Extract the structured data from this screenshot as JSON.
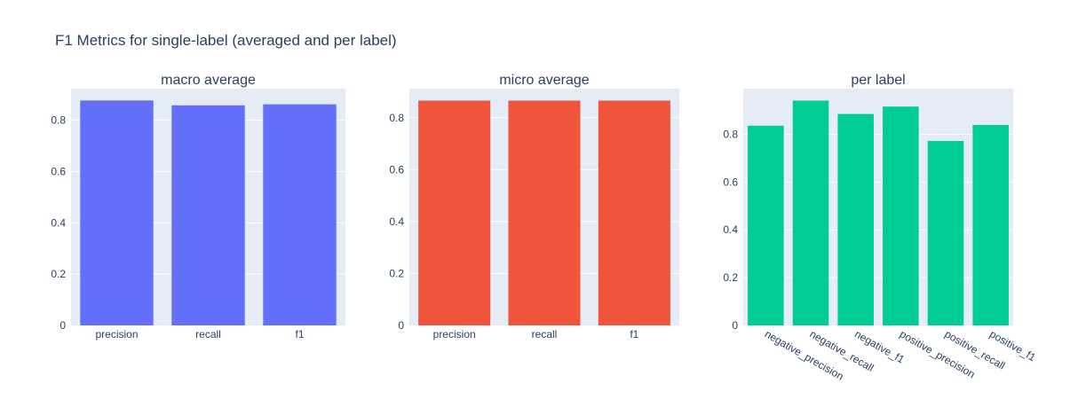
{
  "page": {
    "title": "F1 Metrics for single-label (averaged and per label)"
  },
  "chart_data": [
    {
      "type": "bar",
      "title": "macro average",
      "categories": [
        "precision",
        "recall",
        "f1"
      ],
      "values": [
        0.877,
        0.858,
        0.862
      ],
      "color": "#636efa",
      "ylim": [
        0,
        0.923
      ],
      "yticks": [
        0,
        0.2,
        0.4,
        0.6,
        0.8
      ],
      "ytick_labels": [
        "0",
        "0.2",
        "0.4",
        "0.6",
        "0.8"
      ],
      "xlabel": "",
      "ylabel": "",
      "grid": true,
      "rotate_xticks": false
    },
    {
      "type": "bar",
      "title": "micro average",
      "categories": [
        "precision",
        "recall",
        "f1"
      ],
      "values": [
        0.866,
        0.866,
        0.866
      ],
      "color": "#ef553b",
      "ylim": [
        0,
        0.912
      ],
      "yticks": [
        0,
        0.2,
        0.4,
        0.6,
        0.8
      ],
      "ytick_labels": [
        "0",
        "0.2",
        "0.4",
        "0.6",
        "0.8"
      ],
      "xlabel": "",
      "ylabel": "",
      "grid": true,
      "rotate_xticks": false
    },
    {
      "type": "bar",
      "title": "per label",
      "categories": [
        "negative_precision",
        "negative_recall",
        "negative_f1",
        "positive_precision",
        "positive_recall",
        "positive_f1"
      ],
      "values": [
        0.836,
        0.941,
        0.885,
        0.916,
        0.772,
        0.839
      ],
      "color": "#00cc96",
      "ylim": [
        0,
        0.991
      ],
      "yticks": [
        0,
        0.2,
        0.4,
        0.6,
        0.8
      ],
      "ytick_labels": [
        "0",
        "0.2",
        "0.4",
        "0.6",
        "0.8"
      ],
      "xlabel": "",
      "ylabel": "",
      "grid": true,
      "rotate_xticks": true
    }
  ]
}
